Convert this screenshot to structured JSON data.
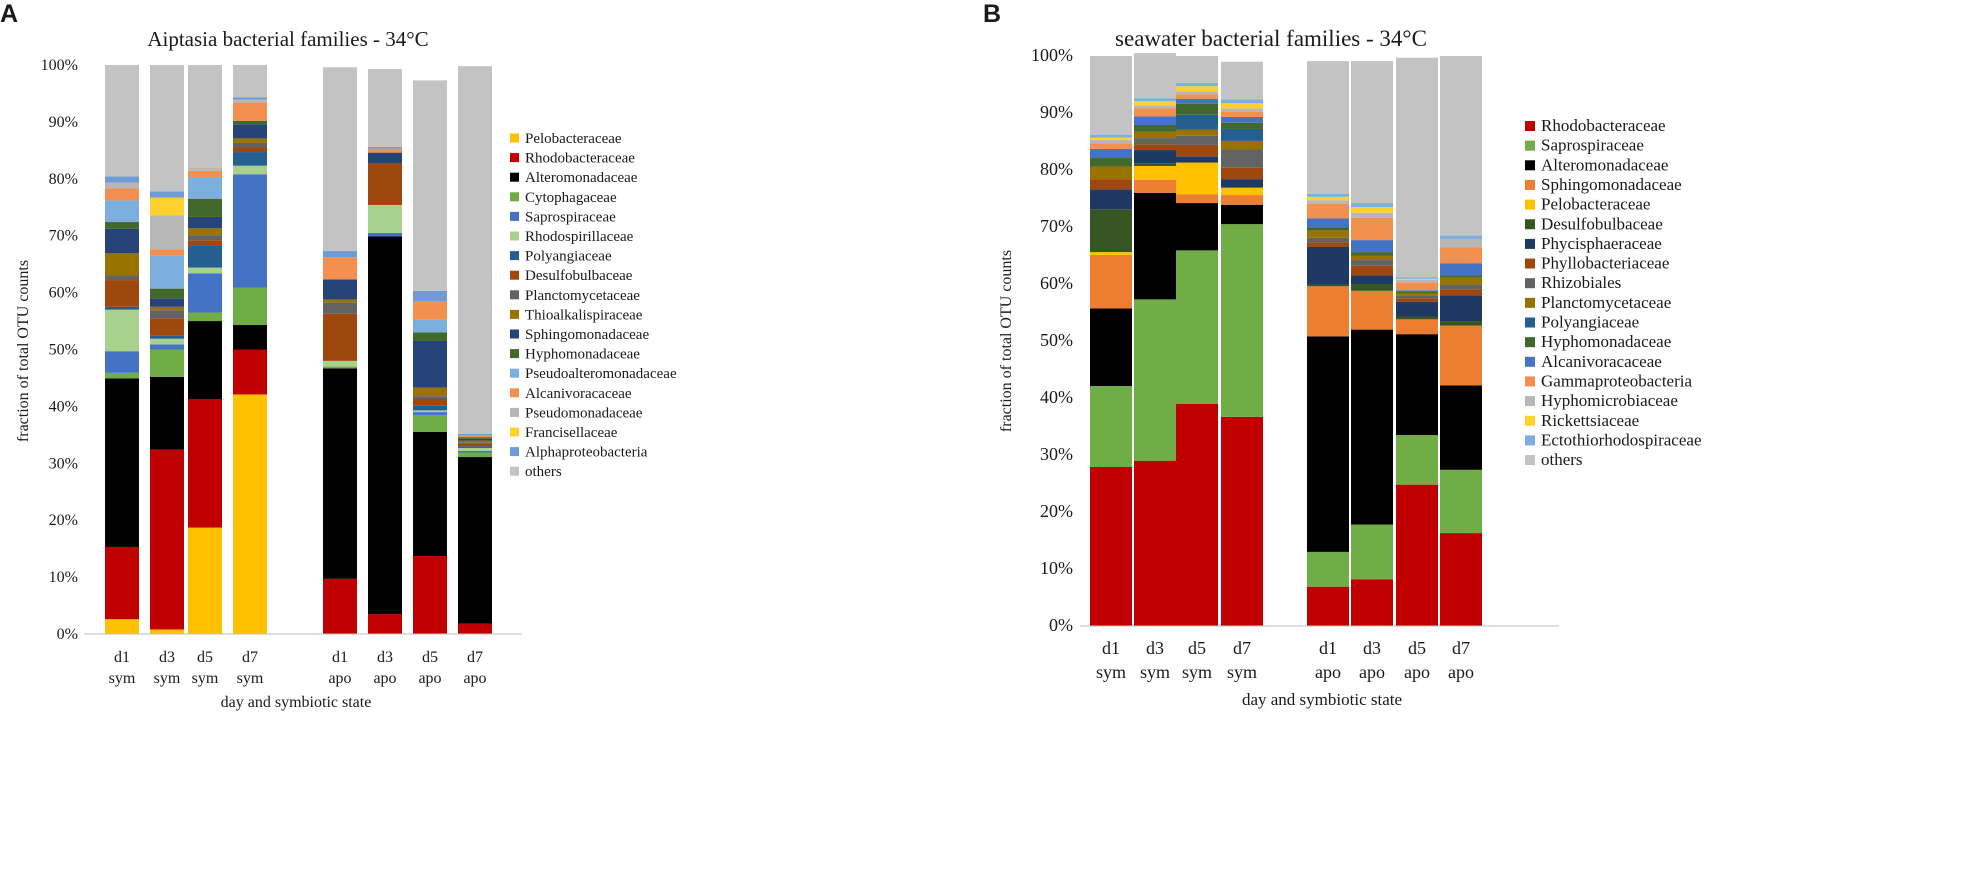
{
  "chart_data": [
    {
      "panel_label": "A",
      "type": "bar",
      "stacked": true,
      "title": "Aiptasia bacterial families - 34°C",
      "xlabel": "day and symbiotic state",
      "ylabel": "fraction of total OTU counts",
      "ylim": [
        0,
        100
      ],
      "yticks": [
        "0%",
        "10%",
        "20%",
        "30%",
        "40%",
        "50%",
        "60%",
        "70%",
        "80%",
        "90%",
        "100%"
      ],
      "categories": [
        [
          "d1",
          "sym"
        ],
        [
          "d3",
          "sym"
        ],
        [
          "d5",
          "sym"
        ],
        [
          "d7",
          "sym"
        ],
        [
          "d1",
          "apo"
        ],
        [
          "d3",
          "apo"
        ],
        [
          "d5",
          "apo"
        ],
        [
          "d7",
          "apo"
        ]
      ],
      "legend_position": "right",
      "series": [
        {
          "name": "Pelobacteraceae",
          "color": "#ffc000",
          "values": [
            2.6,
            0.8,
            18.7,
            42.1,
            0,
            0,
            0,
            0
          ]
        },
        {
          "name": "Rhodobacteraceae",
          "color": "#c00000",
          "values": [
            12.7,
            31.6,
            22.6,
            7.9,
            9.7,
            3.5,
            13.7,
            1.8
          ]
        },
        {
          "name": "Alteromonadaceae",
          "color": "#000000",
          "values": [
            29.6,
            12.8,
            13.7,
            4.3,
            37.0,
            66.4,
            21.8,
            29.3
          ]
        },
        {
          "name": "Cytophagaceae",
          "color": "#70ad47",
          "values": [
            1.0,
            4.8,
            1.5,
            6.6,
            0.3,
            0,
            3.0,
            0.8
          ]
        },
        {
          "name": "Saprospiraceae",
          "color": "#4472c4",
          "values": [
            3.8,
            0.9,
            6.9,
            19.9,
            0,
            0.6,
            0.5,
            0.3
          ]
        },
        {
          "name": "Rhodospirillaceae",
          "color": "#a9d18e",
          "values": [
            7.3,
            1.0,
            1.0,
            1.5,
            1.0,
            4.9,
            0.3,
            0.5
          ]
        },
        {
          "name": "Polyangiaceae",
          "color": "#255e91",
          "values": [
            0.5,
            0.5,
            3.8,
            2.4,
            0,
            0,
            0.8,
            0.3
          ]
        },
        {
          "name": "Desulfobulbaceae",
          "color": "#9e480e",
          "values": [
            4.7,
            3.1,
            1.0,
            0.8,
            8.3,
            7.3,
            1.2,
            0.4
          ]
        },
        {
          "name": "Planctomycetaceae",
          "color": "#636363",
          "values": [
            0.8,
            1.4,
            0.9,
            0.8,
            2.0,
            0,
            0.5,
            0.3
          ]
        },
        {
          "name": "Thioalkalispiraceae",
          "color": "#997300",
          "values": [
            3.9,
            0.6,
            1.2,
            0.8,
            0.5,
            0,
            1.5,
            0.3
          ]
        },
        {
          "name": "Sphingomonadaceae",
          "color": "#264478",
          "values": [
            4.3,
            1.5,
            2.0,
            2.5,
            3.5,
            1.9,
            8.2,
            0.3
          ]
        },
        {
          "name": "Hyphomonadaceae",
          "color": "#43682b",
          "values": [
            1.2,
            1.7,
            3.2,
            0.6,
            0,
            0,
            1.5,
            0.3
          ]
        },
        {
          "name": "Pseudoalteromonadaceae",
          "color": "#7cafdd",
          "values": [
            3.8,
            5.8,
            3.8,
            0,
            0,
            0,
            2.2,
            0
          ]
        },
        {
          "name": "Alcanivoracaceae",
          "color": "#f4904f",
          "values": [
            2.1,
            1.1,
            1.1,
            3.2,
            3.9,
            0.7,
            3.2,
            0.3
          ]
        },
        {
          "name": "Pseudomonadaceae",
          "color": "#b7b7b7",
          "values": [
            1.0,
            6.0,
            0.5,
            0.5,
            0,
            0,
            0,
            0
          ]
        },
        {
          "name": "Francisellaceae",
          "color": "#ffd12f",
          "values": [
            0,
            3.1,
            0,
            0,
            0,
            0,
            0,
            0
          ]
        },
        {
          "name": "Alphaproteobacteria",
          "color": "#6f9bd7",
          "values": [
            1.1,
            1.1,
            0,
            0.4,
            1.1,
            0.3,
            1.9,
            0.3
          ]
        },
        {
          "name": "others",
          "color": "#c3c3c3",
          "values": [
            19.6,
            22.2,
            18.1,
            5.7,
            32.3,
            13.7,
            37.0,
            64.6
          ]
        }
      ]
    },
    {
      "panel_label": "B",
      "type": "bar",
      "stacked": true,
      "title": "seawater bacterial families - 34°C",
      "xlabel": "day and symbiotic state",
      "ylabel": "fraction of total OTU counts",
      "ylim": [
        0,
        100
      ],
      "yticks": [
        "0%",
        "10%",
        "20%",
        "30%",
        "40%",
        "50%",
        "60%",
        "70%",
        "80%",
        "90%",
        "100%"
      ],
      "categories": [
        [
          "d1",
          "sym"
        ],
        [
          "d3",
          "sym"
        ],
        [
          "d5",
          "sym"
        ],
        [
          "d7",
          "sym"
        ],
        [
          "d1",
          "apo"
        ],
        [
          "d3",
          "apo"
        ],
        [
          "d5",
          "apo"
        ],
        [
          "d7",
          "apo"
        ]
      ],
      "legend_position": "right",
      "series": [
        {
          "name": "Rhodobacteraceae",
          "color": "#c00000",
          "values": [
            27.9,
            29.0,
            39.0,
            36.7,
            6.9,
            8.2,
            24.8,
            16.3
          ]
        },
        {
          "name": "Saprospiraceae",
          "color": "#70ad47",
          "values": [
            14.2,
            28.3,
            26.9,
            33.8,
            6.1,
            9.6,
            8.7,
            11.1
          ]
        },
        {
          "name": "Alteromonadaceae",
          "color": "#000000",
          "values": [
            13.6,
            18.7,
            8.3,
            3.4,
            37.8,
            34.2,
            17.7,
            14.8
          ]
        },
        {
          "name": "Sphingomonadaceae",
          "color": "#ed7d31",
          "values": [
            9.4,
            2.3,
            1.5,
            1.7,
            8.8,
            6.8,
            2.6,
            10.5
          ]
        },
        {
          "name": "Pelobacteraceae",
          "color": "#ffc000",
          "values": [
            0.5,
            2.4,
            5.6,
            1.3,
            0,
            0,
            0,
            0
          ]
        },
        {
          "name": "Desulfobulbaceae",
          "color": "#375623",
          "values": [
            7.5,
            0.5,
            0,
            0,
            0.3,
            1.2,
            0.5,
            0.8
          ]
        },
        {
          "name": "Phycisphaeraceae",
          "color": "#203864",
          "values": [
            3.5,
            2.3,
            1.1,
            1.5,
            6.6,
            1.5,
            2.6,
            4.5
          ]
        },
        {
          "name": "Phyllobacteriaceae",
          "color": "#9e480e",
          "values": [
            1.8,
            1.0,
            2.0,
            2.0,
            0.8,
            1.7,
            0.6,
            1.1
          ]
        },
        {
          "name": "Rhizobiales",
          "color": "#636363",
          "values": [
            0,
            1.1,
            1.6,
            3.2,
            0.8,
            1.0,
            0.4,
            0.8
          ]
        },
        {
          "name": "Planctomycetaceae",
          "color": "#997300",
          "values": [
            2.2,
            1.1,
            1.1,
            1.5,
            1.3,
            0.8,
            0.4,
            1.2
          ]
        },
        {
          "name": "Polyangiaceae",
          "color": "#255e91",
          "values": [
            0,
            0,
            2.6,
            2.1,
            0,
            0,
            0,
            0
          ]
        },
        {
          "name": "Hyphomonadaceae",
          "color": "#43682b",
          "values": [
            1.5,
            1.2,
            1.9,
            1.1,
            0.5,
            0.6,
            0.3,
            0.4
          ]
        },
        {
          "name": "Alcanivoracaceae",
          "color": "#4472c4",
          "values": [
            1.6,
            1.5,
            0.9,
            1.0,
            1.6,
            2.1,
            0.3,
            2.1
          ]
        },
        {
          "name": "Gammaproteobacteria",
          "color": "#f4904f",
          "values": [
            1.0,
            1.4,
            0.8,
            1.0,
            2.6,
            3.9,
            1.4,
            2.8
          ]
        },
        {
          "name": "Hyphomicrobiaceae",
          "color": "#b7b7b7",
          "values": [
            0.6,
            0.5,
            0.5,
            0.5,
            0.6,
            0.9,
            0.4,
            1.5
          ]
        },
        {
          "name": "Rickettsiaceae",
          "color": "#ffd12f",
          "values": [
            0.4,
            0.8,
            0.9,
            0.9,
            0.6,
            1.0,
            0.2,
            0
          ]
        },
        {
          "name": "Ectothiorhodospiraceae",
          "color": "#7cafdd",
          "values": [
            0.5,
            0.5,
            0.6,
            0.7,
            0.5,
            0.7,
            0.3,
            0.6
          ]
        },
        {
          "name": "others",
          "color": "#c3c3c3",
          "values": [
            13.8,
            7.9,
            4.7,
            6.6,
            23.3,
            24.9,
            38.5,
            31.5
          ]
        }
      ]
    }
  ]
}
